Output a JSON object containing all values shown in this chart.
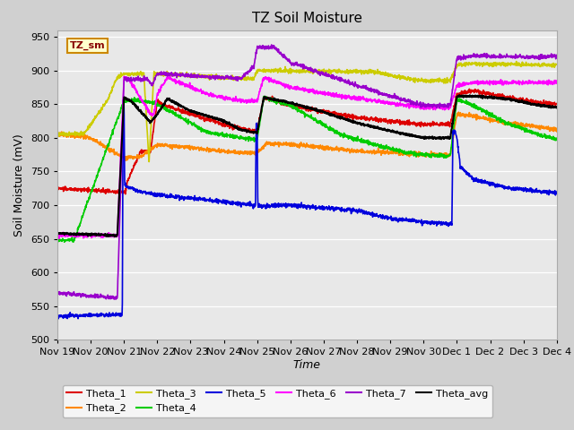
{
  "title": "TZ Soil Moisture",
  "xlabel": "Time",
  "ylabel": "Soil Moisture (mV)",
  "ylim": [
    500,
    960
  ],
  "yticks": [
    500,
    550,
    600,
    650,
    700,
    750,
    800,
    850,
    900,
    950
  ],
  "figsize": [
    6.4,
    4.8
  ],
  "dpi": 100,
  "fig_bg": "#d0d0d0",
  "plot_bg": "#e8e8e8",
  "grid_color": "#ffffff",
  "series_colors": {
    "Theta_1": "#dd0000",
    "Theta_2": "#ff8800",
    "Theta_3": "#cccc00",
    "Theta_4": "#00cc00",
    "Theta_5": "#0000dd",
    "Theta_6": "#ff00ff",
    "Theta_7": "#9900cc",
    "Theta_avg": "#000000"
  },
  "x_tick_labels": [
    "Nov 19",
    "Nov 20",
    "Nov 21",
    "Nov 22",
    "Nov 23",
    "Nov 24",
    "Nov 25",
    "Nov 26",
    "Nov 27",
    "Nov 28",
    "Nov 29",
    "Nov 30",
    "Dec 1",
    "Dec 2",
    "Dec 3",
    "Dec 4"
  ],
  "x_tick_positions": [
    0,
    1,
    2,
    3,
    4,
    5,
    6,
    7,
    8,
    9,
    10,
    11,
    12,
    13,
    14,
    15
  ],
  "legend_ncol": 6,
  "lw": 1.2
}
